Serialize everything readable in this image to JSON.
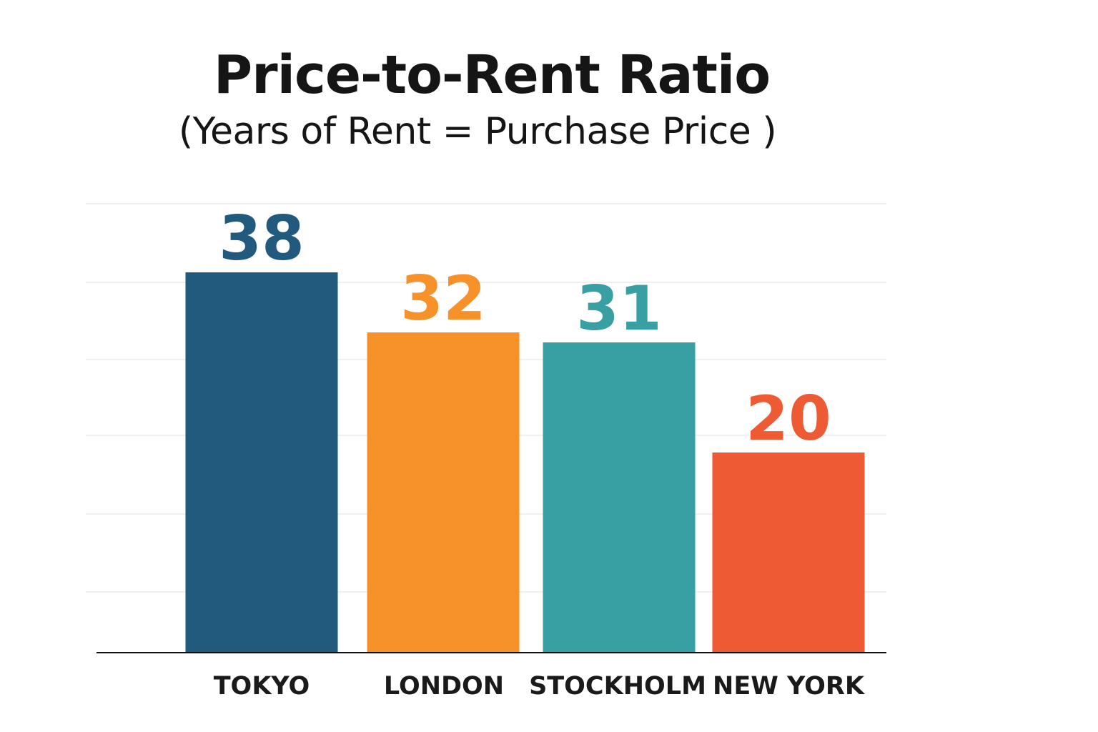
{
  "chart_data": {
    "type": "bar",
    "title": "Price-to-Rent Ratio",
    "subtitle": "(Years of Rent = Purchase Price )",
    "categories": [
      "TOKYO",
      "LONDON",
      "STOCKHOLM",
      "NEW YORK"
    ],
    "values": [
      38,
      32,
      31,
      20
    ],
    "value_labels": [
      "38",
      "32",
      "31",
      "20"
    ],
    "colors": [
      "#225a7d",
      "#f7912a",
      "#389fa3",
      "#ed5a33"
    ],
    "xlabel": "",
    "ylabel": "",
    "ylim": [
      0,
      46
    ],
    "grid": true,
    "legend": "none"
  }
}
